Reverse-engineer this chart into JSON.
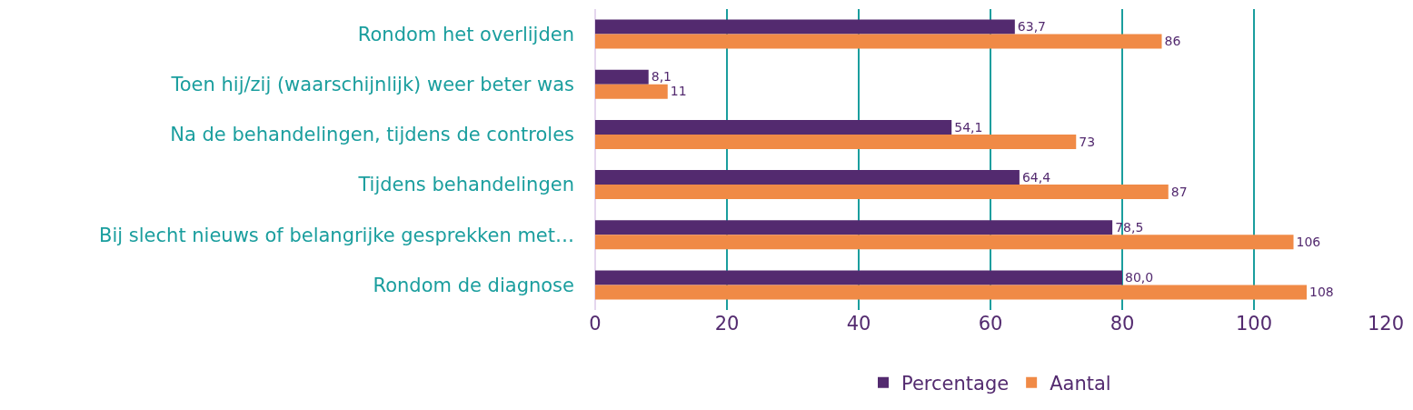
{
  "chart_data": {
    "type": "bar",
    "orientation": "horizontal",
    "categories": [
      "Rondom het overlijden",
      "Toen hij/zij (waarschijnlijk) weer beter was",
      "Na de behandelingen, tijdens de controles",
      "Tijdens behandelingen",
      "Bij slecht nieuws of belangrijke gesprekken met…",
      "Rondom de diagnose"
    ],
    "series": [
      {
        "name": "Percentage",
        "color": "#532a6f",
        "values": [
          63.7,
          8.1,
          54.1,
          64.4,
          78.5,
          80.0
        ],
        "value_labels": [
          "63,7",
          "8,1",
          "54,1",
          "64,4",
          "78,5",
          "80,0"
        ]
      },
      {
        "name": "Aantal",
        "color": "#f08a46",
        "values": [
          86,
          11,
          73,
          87,
          106,
          108
        ],
        "value_labels": [
          "86",
          "11",
          "73",
          "87",
          "106",
          "108"
        ]
      }
    ],
    "xlim": [
      0,
      120
    ],
    "xticks": [
      0,
      20,
      40,
      60,
      80,
      100,
      120
    ],
    "grid": "x",
    "legend": "bottom"
  }
}
